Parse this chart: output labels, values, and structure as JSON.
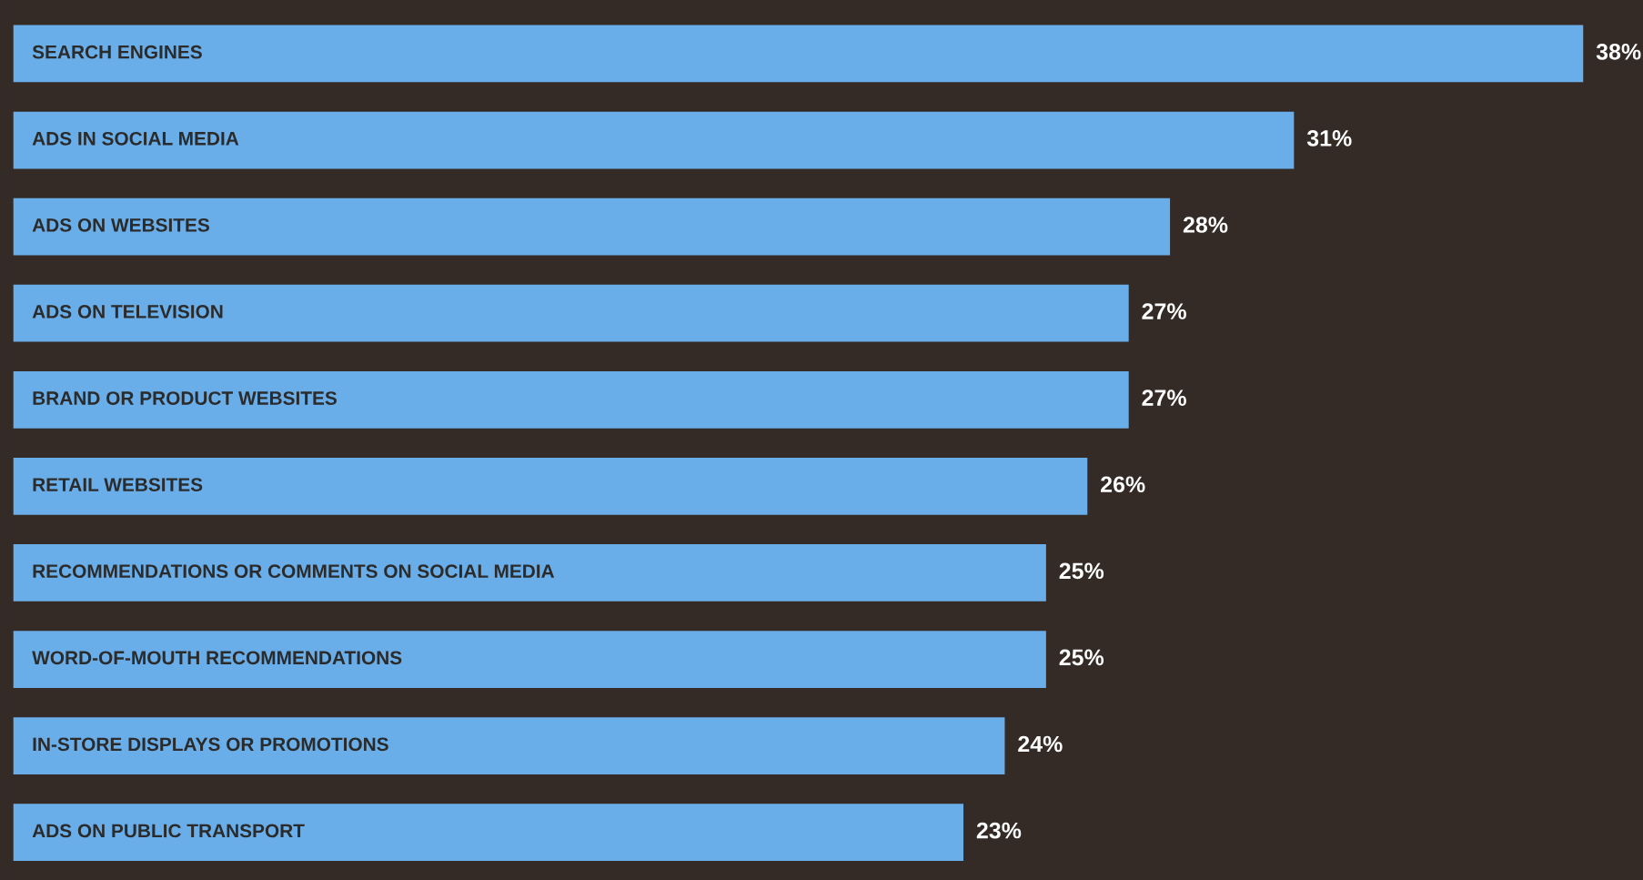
{
  "chart_data": {
    "type": "bar",
    "orientation": "horizontal",
    "categories": [
      "SEARCH ENGINES",
      "ADS IN SOCIAL MEDIA",
      "ADS ON WEBSITES",
      "ADS ON TELEVISION",
      "BRAND OR PRODUCT WEBSITES",
      "RETAIL WEBSITES",
      "RECOMMENDATIONS OR COMMENTS ON SOCIAL MEDIA",
      "WORD-OF-MOUTH RECOMMENDATIONS",
      "IN-STORE DISPLAYS OR PROMOTIONS",
      "ADS ON PUBLIC TRANSPORT"
    ],
    "values": [
      38,
      31,
      28,
      27,
      27,
      26,
      25,
      25,
      24,
      23
    ],
    "value_labels": [
      "38%",
      "31%",
      "28%",
      "27%",
      "27%",
      "26%",
      "25%",
      "25%",
      "24%",
      "23%"
    ],
    "color": "#6aaee9"
  }
}
